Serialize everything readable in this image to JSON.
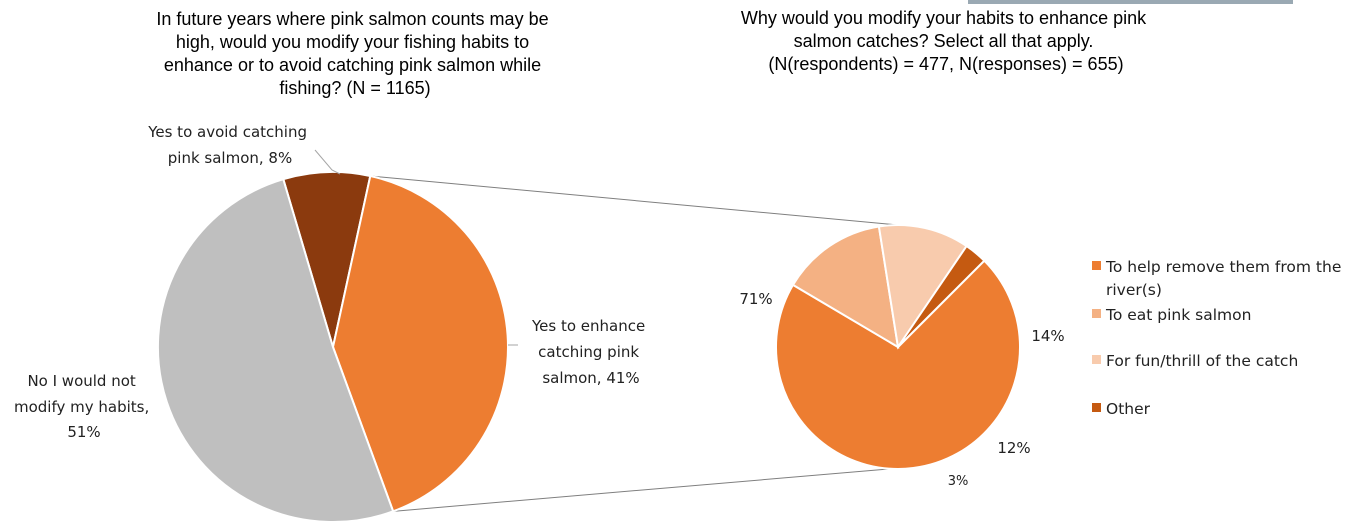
{
  "chart_data": [
    {
      "type": "pie",
      "title": "In future years where pink salmon counts may be high, would you modify your fishing habits to enhance or to avoid catching pink salmon while fishing? (N = 1165)",
      "title_lines": [
        "In future years where pink salmon counts may be",
        "high, would you modify your fishing habits to",
        "enhance or to avoid catching pink salmon while",
        "fishing? (N = 1165)"
      ],
      "slices": [
        {
          "label": "Yes to avoid catching pink salmon",
          "value": 8,
          "color": "#8b3a0e",
          "label_lines": [
            "Yes to avoid catching",
            "pink salmon, 8%"
          ]
        },
        {
          "label": "Yes to enhance catching pink salmon",
          "value": 41,
          "color": "#ed7d31",
          "label_lines": [
            "Yes to enhance",
            "catching pink",
            "salmon, 41%"
          ]
        },
        {
          "label": "No I would not modify my habits",
          "value": 51,
          "color": "#bfbfbf",
          "label_lines": [
            "No I would not",
            "modify my habits,",
            "51%"
          ]
        }
      ]
    },
    {
      "type": "pie",
      "title": "Why would you modify your habits to enhance pink salmon catches? Select all that apply. (N(respondents) = 477, N(responses) = 655)",
      "title_lines": [
        "Why would you modify your habits to enhance pink",
        "salmon catches? Select all that apply.",
        "(N(respondents) = 477, N(responses) = 655)"
      ],
      "slices": [
        {
          "label": "To help remove them from the river(s)",
          "value": 71,
          "color": "#ed7d31",
          "value_label": "71%"
        },
        {
          "label": "To eat pink salmon",
          "value": 14,
          "color": "#f4b183",
          "value_label": "14%"
        },
        {
          "label": "For fun/thrill of the catch",
          "value": 12,
          "color": "#f8cbad",
          "value_label": "12%"
        },
        {
          "label": "Other",
          "value": 3,
          "color": "#c55a11",
          "value_label": "3%"
        }
      ],
      "legend": {
        "position": "right",
        "items": [
          {
            "lines": [
              "To help remove them from the",
              "river(s)"
            ],
            "color": "#ed7d31"
          },
          {
            "lines": [
              "To eat pink salmon"
            ],
            "color": "#f4b183"
          },
          {
            "lines": [
              "For fun/thrill of the catch"
            ],
            "color": "#f8cbad"
          },
          {
            "lines": [
              "Other"
            ],
            "color": "#c55a11"
          }
        ]
      }
    }
  ]
}
